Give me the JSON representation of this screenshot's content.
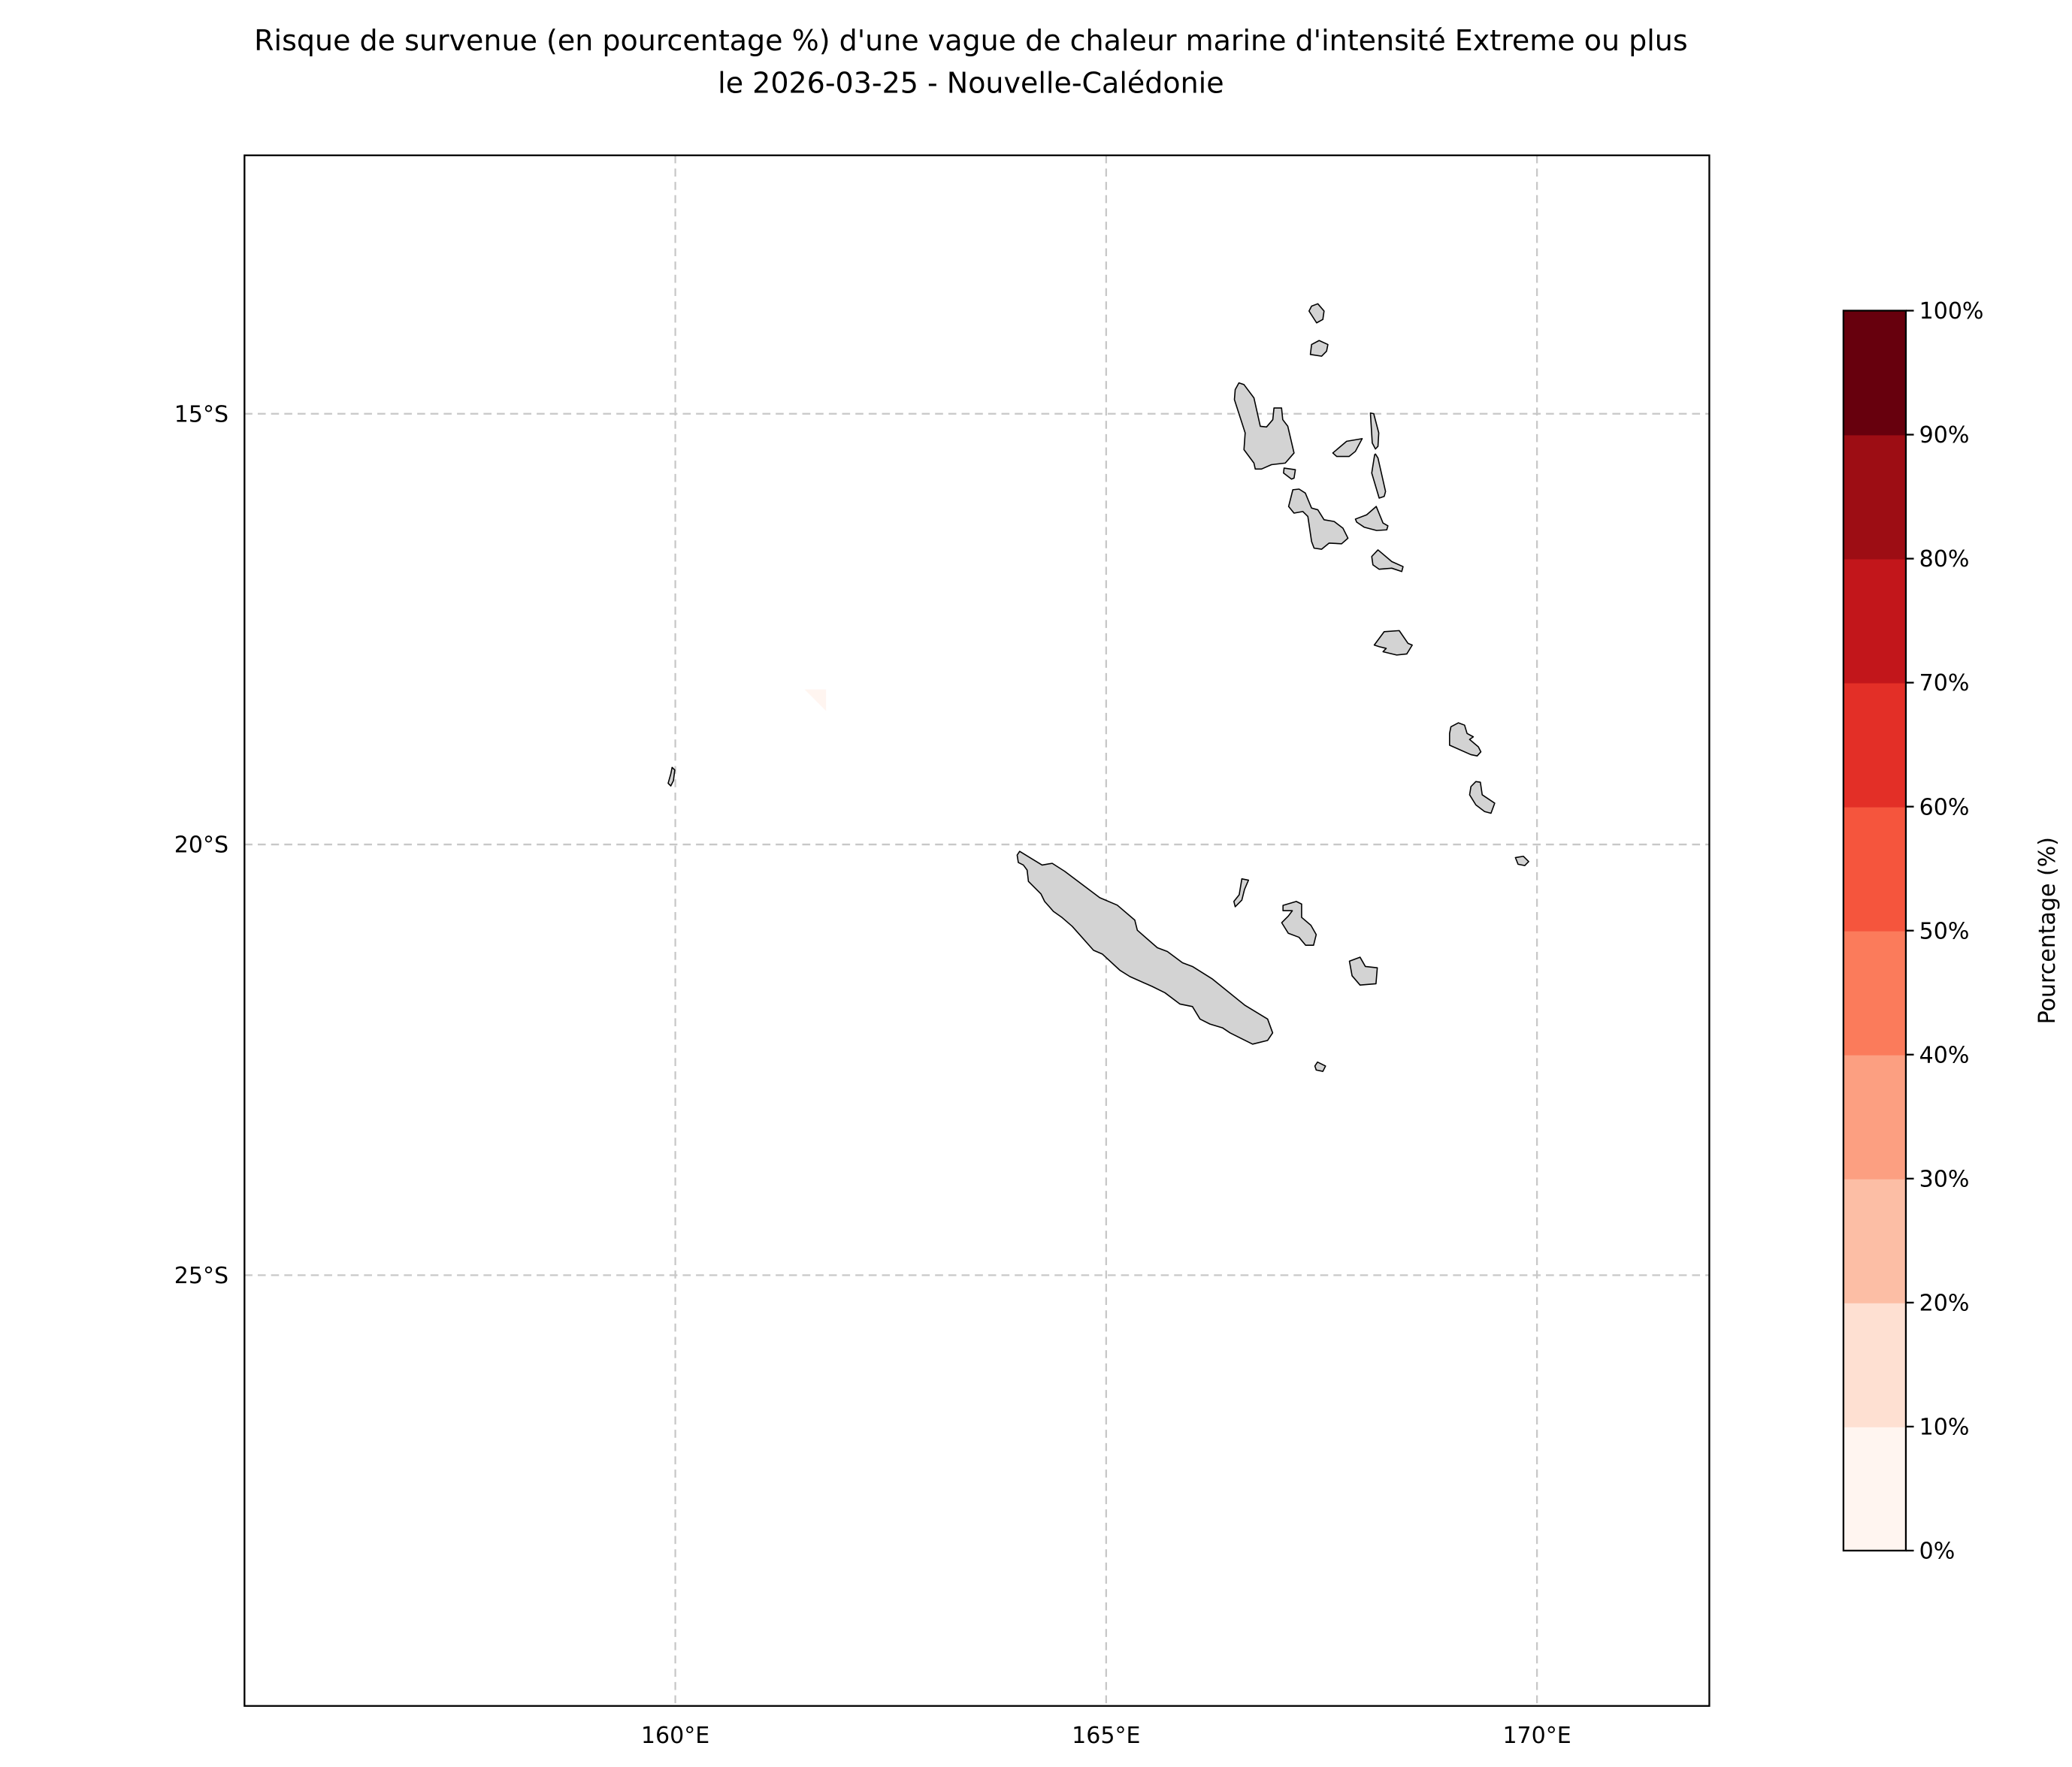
{
  "title": {
    "line1": "Risque de survenue (en pourcentage %) d'une vague de chaleur marine d'intensité Extreme ou plus",
    "line2": "le 2026-03-25 - Nouvelle-Calédonie"
  },
  "chart_data": {
    "type": "heatmap",
    "projection": "PlateCarree",
    "lon_range": [
      155,
      172
    ],
    "lat_range": [
      -12,
      -30
    ],
    "grid": true,
    "x_ticks": [
      {
        "value": 160,
        "label": "160°E"
      },
      {
        "value": 165,
        "label": "165°E"
      },
      {
        "value": 170,
        "label": "170°E"
      }
    ],
    "y_ticks": [
      {
        "value": -15,
        "label": "15°S"
      },
      {
        "value": -20,
        "label": "20°S"
      },
      {
        "value": -25,
        "label": "25°S"
      }
    ],
    "land_color": "#d3d3d3",
    "highlighted_cells": [
      {
        "lon_range": [
          161.5,
          161.75
        ],
        "lat_range": [
          -18.2,
          -18.45
        ],
        "bin": "0-10%"
      }
    ],
    "colorbar": {
      "label": "Pourcentage (%)",
      "position": "right",
      "levels": [
        0,
        10,
        20,
        30,
        40,
        50,
        60,
        70,
        80,
        90,
        100
      ],
      "tick_labels": [
        "0%",
        "10%",
        "20%",
        "30%",
        "40%",
        "50%",
        "60%",
        "70%",
        "80%",
        "90%",
        "100%"
      ],
      "colors": [
        "#fff5f0",
        "#fee0d2",
        "#fcbea5",
        "#fc9f81",
        "#fb7b5b",
        "#f5553d",
        "#e32f27",
        "#c2161b",
        "#9d0d14",
        "#67000d"
      ]
    }
  }
}
